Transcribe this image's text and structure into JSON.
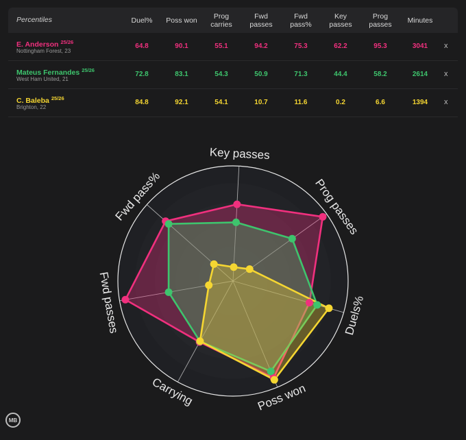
{
  "table": {
    "title": "Percentiles",
    "columns": [
      "Duel%",
      "Poss won",
      "Prog carries",
      "Fwd passes",
      "Fwd pass%",
      "Key passes",
      "Prog passes",
      "Minutes"
    ],
    "remove_label": "x",
    "players": [
      {
        "name": "E. Anderson",
        "season": "25/26",
        "club": "Nottingham Forest, 23",
        "color": "#f0307e",
        "values": [
          "64.8",
          "90.1",
          "55.1",
          "94.2",
          "75.3",
          "62.2",
          "95.3",
          "3041"
        ]
      },
      {
        "name": "Mateus Fernandes",
        "season": "25/26",
        "club": "West Ham United, 21",
        "color": "#3ec46d",
        "values": [
          "72.8",
          "83.1",
          "54.3",
          "50.9",
          "71.3",
          "44.4",
          "58.2",
          "2614"
        ]
      },
      {
        "name": "C. Baleba",
        "season": "25/26",
        "club": "Brighton, 22",
        "color": "#f5d632",
        "values": [
          "84.8",
          "92.1",
          "54.1",
          "10.7",
          "11.6",
          "0.2",
          "6.6",
          "1394"
        ]
      }
    ]
  },
  "chart_data": {
    "type": "radar",
    "axes": [
      "Key passes",
      "Prog passes",
      "Duels%",
      "Poss won",
      "Carrying",
      "Fwd passes",
      "Fwd pass%"
    ],
    "range": [
      0,
      100
    ],
    "series": [
      {
        "name": "E. Anderson",
        "color": "#f0307e",
        "values": [
          62.2,
          95.3,
          64.8,
          90.1,
          55.1,
          94.2,
          75.3
        ]
      },
      {
        "name": "Mateus Fernandes",
        "color": "#3ec46d",
        "values": [
          44.4,
          58.2,
          72.8,
          83.1,
          54.3,
          50.9,
          71.3
        ]
      },
      {
        "name": "C. Baleba",
        "color": "#f5d632",
        "values": [
          0.2,
          6.6,
          84.8,
          92.1,
          54.1,
          10.7,
          11.6
        ]
      }
    ]
  },
  "logo_text": "MB"
}
